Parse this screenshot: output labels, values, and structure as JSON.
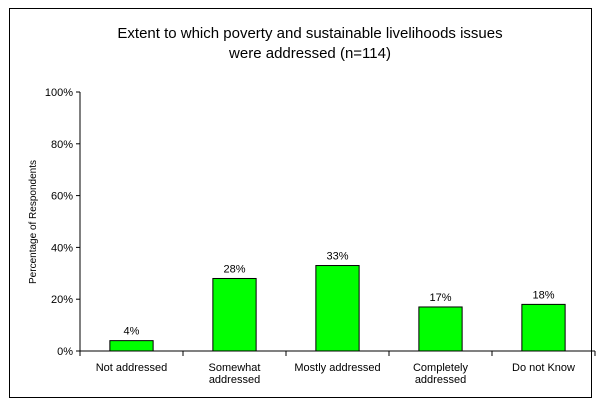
{
  "chart_data": {
    "type": "bar",
    "title_lines": [
      "Extent to which poverty and sustainable livelihoods issues",
      "were addressed (n=114)"
    ],
    "ylabel": "Percentage of Respondents",
    "xlabel": "",
    "ylim": [
      0,
      100
    ],
    "yticks": [
      "0%",
      "20%",
      "40%",
      "60%",
      "80%",
      "100%"
    ],
    "categories": [
      [
        "Not addressed"
      ],
      [
        "Somewhat",
        "addressed"
      ],
      [
        "Mostly addressed"
      ],
      [
        "Completely",
        "addressed"
      ],
      [
        "Do not Know"
      ]
    ],
    "values": [
      4,
      28,
      33,
      17,
      18
    ],
    "data_labels": [
      "4%",
      "28%",
      "33%",
      "17%",
      "18%"
    ],
    "grid": false,
    "legend": "none",
    "bar_color": "#00FF00",
    "bar_edge_color": "#000000"
  }
}
